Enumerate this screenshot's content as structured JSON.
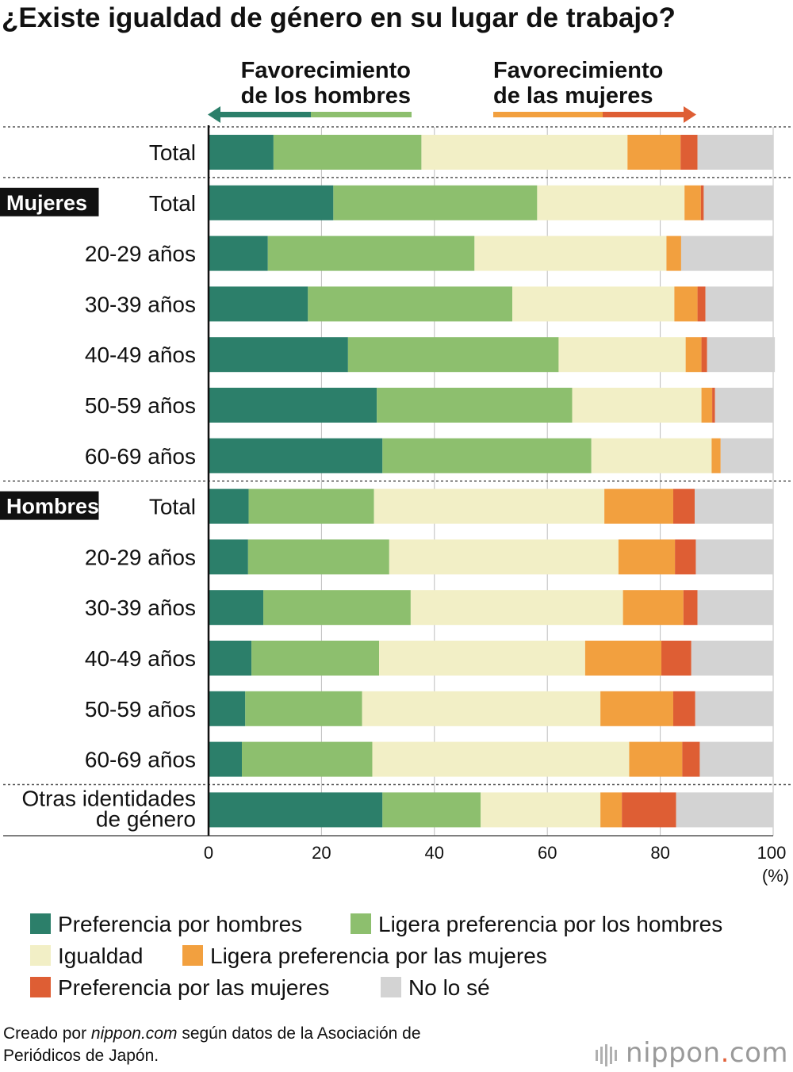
{
  "title": "¿Existe igualdad de género en su lugar de trabajo?",
  "arrow_left_line1": "Favorecimiento",
  "arrow_left_line2": "de los hombres",
  "arrow_right_line1": "Favorecimiento",
  "arrow_right_line2": "de las mujeres",
  "group_labels": [
    "Mujeres",
    "Hombres"
  ],
  "footer": {
    "prefix": "Creado por ",
    "site": "nippon.com",
    "suffix": " según datos de la Asociación de",
    "line2": "Periódicos de Japón."
  },
  "brand": {
    "name": "nippon",
    "dot": ".",
    "tld": "com"
  },
  "colors": {
    "preferencia_hombres": "#2c7f6a",
    "ligera_hombres": "#8dbf6e",
    "igualdad": "#f2efc6",
    "ligera_mujeres": "#f2a03f",
    "preferencia_mujeres": "#de5e34",
    "no_lo_se": "#d3d3d3"
  },
  "chart_data": {
    "type": "bar",
    "orientation": "horizontal",
    "stacked": true,
    "xlim": [
      0,
      100
    ],
    "x_ticks": [
      "0",
      "20",
      "40",
      "60",
      "80",
      "100"
    ],
    "x_unit": "(%)",
    "categories": [
      "Total",
      "Total",
      "20-29 años",
      "30-39 años",
      "40-49 años",
      "50-59 años",
      "60-69 años",
      "Total",
      "20-29 años",
      "30-39 años",
      "40-49 años",
      "50-59 años",
      "60-69 años",
      "Otras identidades de género"
    ],
    "category_lines": [
      [
        "Total"
      ],
      [
        "Total"
      ],
      [
        "20-29 años"
      ],
      [
        "30-39 años"
      ],
      [
        "40-49 años"
      ],
      [
        "50-59 años"
      ],
      [
        "60-69 años"
      ],
      [
        "Total"
      ],
      [
        "20-29 años"
      ],
      [
        "30-39 años"
      ],
      [
        "40-49 años"
      ],
      [
        "50-59 años"
      ],
      [
        "60-69 años"
      ],
      [
        "Otras identidades",
        "de género"
      ]
    ],
    "groups": [
      {
        "label": "",
        "rows": [
          0
        ]
      },
      {
        "label": "Mujeres",
        "rows": [
          1,
          2,
          3,
          4,
          5,
          6
        ]
      },
      {
        "label": "Hombres",
        "rows": [
          7,
          8,
          9,
          10,
          11,
          12
        ]
      },
      {
        "label": "",
        "rows": [
          13
        ]
      }
    ],
    "series": [
      {
        "name": "Preferencia por hombres",
        "color": "#2c7f6a",
        "values": [
          11.5,
          22.1,
          10.5,
          17.6,
          24.7,
          29.8,
          30.8,
          7.1,
          7.0,
          9.7,
          7.6,
          6.5,
          5.9,
          30.8
        ]
      },
      {
        "name": "Ligera preferencia por los hombres",
        "color": "#8dbf6e",
        "values": [
          26.2,
          36.1,
          36.6,
          36.2,
          37.3,
          34.6,
          37.0,
          22.2,
          25.0,
          26.1,
          22.6,
          20.7,
          23.1,
          17.4
        ]
      },
      {
        "name": "Igualdad",
        "color": "#f2efc6",
        "values": [
          36.5,
          26.1,
          34.0,
          28.7,
          22.5,
          22.9,
          21.3,
          40.8,
          40.6,
          37.6,
          36.5,
          42.2,
          45.5,
          21.2
        ]
      },
      {
        "name": "Ligera preferencia por las mujeres",
        "color": "#f2a03f",
        "values": [
          9.4,
          2.9,
          2.6,
          4.1,
          2.8,
          1.9,
          1.6,
          12.2,
          10.0,
          10.7,
          13.5,
          12.9,
          9.4,
          3.8
        ]
      },
      {
        "name": "Preferencia por las mujeres",
        "color": "#de5e34",
        "values": [
          3.0,
          0.5,
          0.0,
          1.4,
          1.0,
          0.5,
          0.0,
          3.8,
          3.7,
          2.5,
          5.3,
          3.9,
          3.1,
          9.6
        ]
      },
      {
        "name": "No lo sé",
        "color": "#d3d3d3",
        "values": [
          13.4,
          12.3,
          16.3,
          12.0,
          12.0,
          10.3,
          9.3,
          13.9,
          13.7,
          13.4,
          14.5,
          13.8,
          13.0,
          17.2
        ]
      }
    ],
    "legend_rows": [
      [
        0,
        1
      ],
      [
        2,
        3
      ],
      [
        4,
        5
      ]
    ],
    "legend_placement": "bottom",
    "grid": true
  }
}
